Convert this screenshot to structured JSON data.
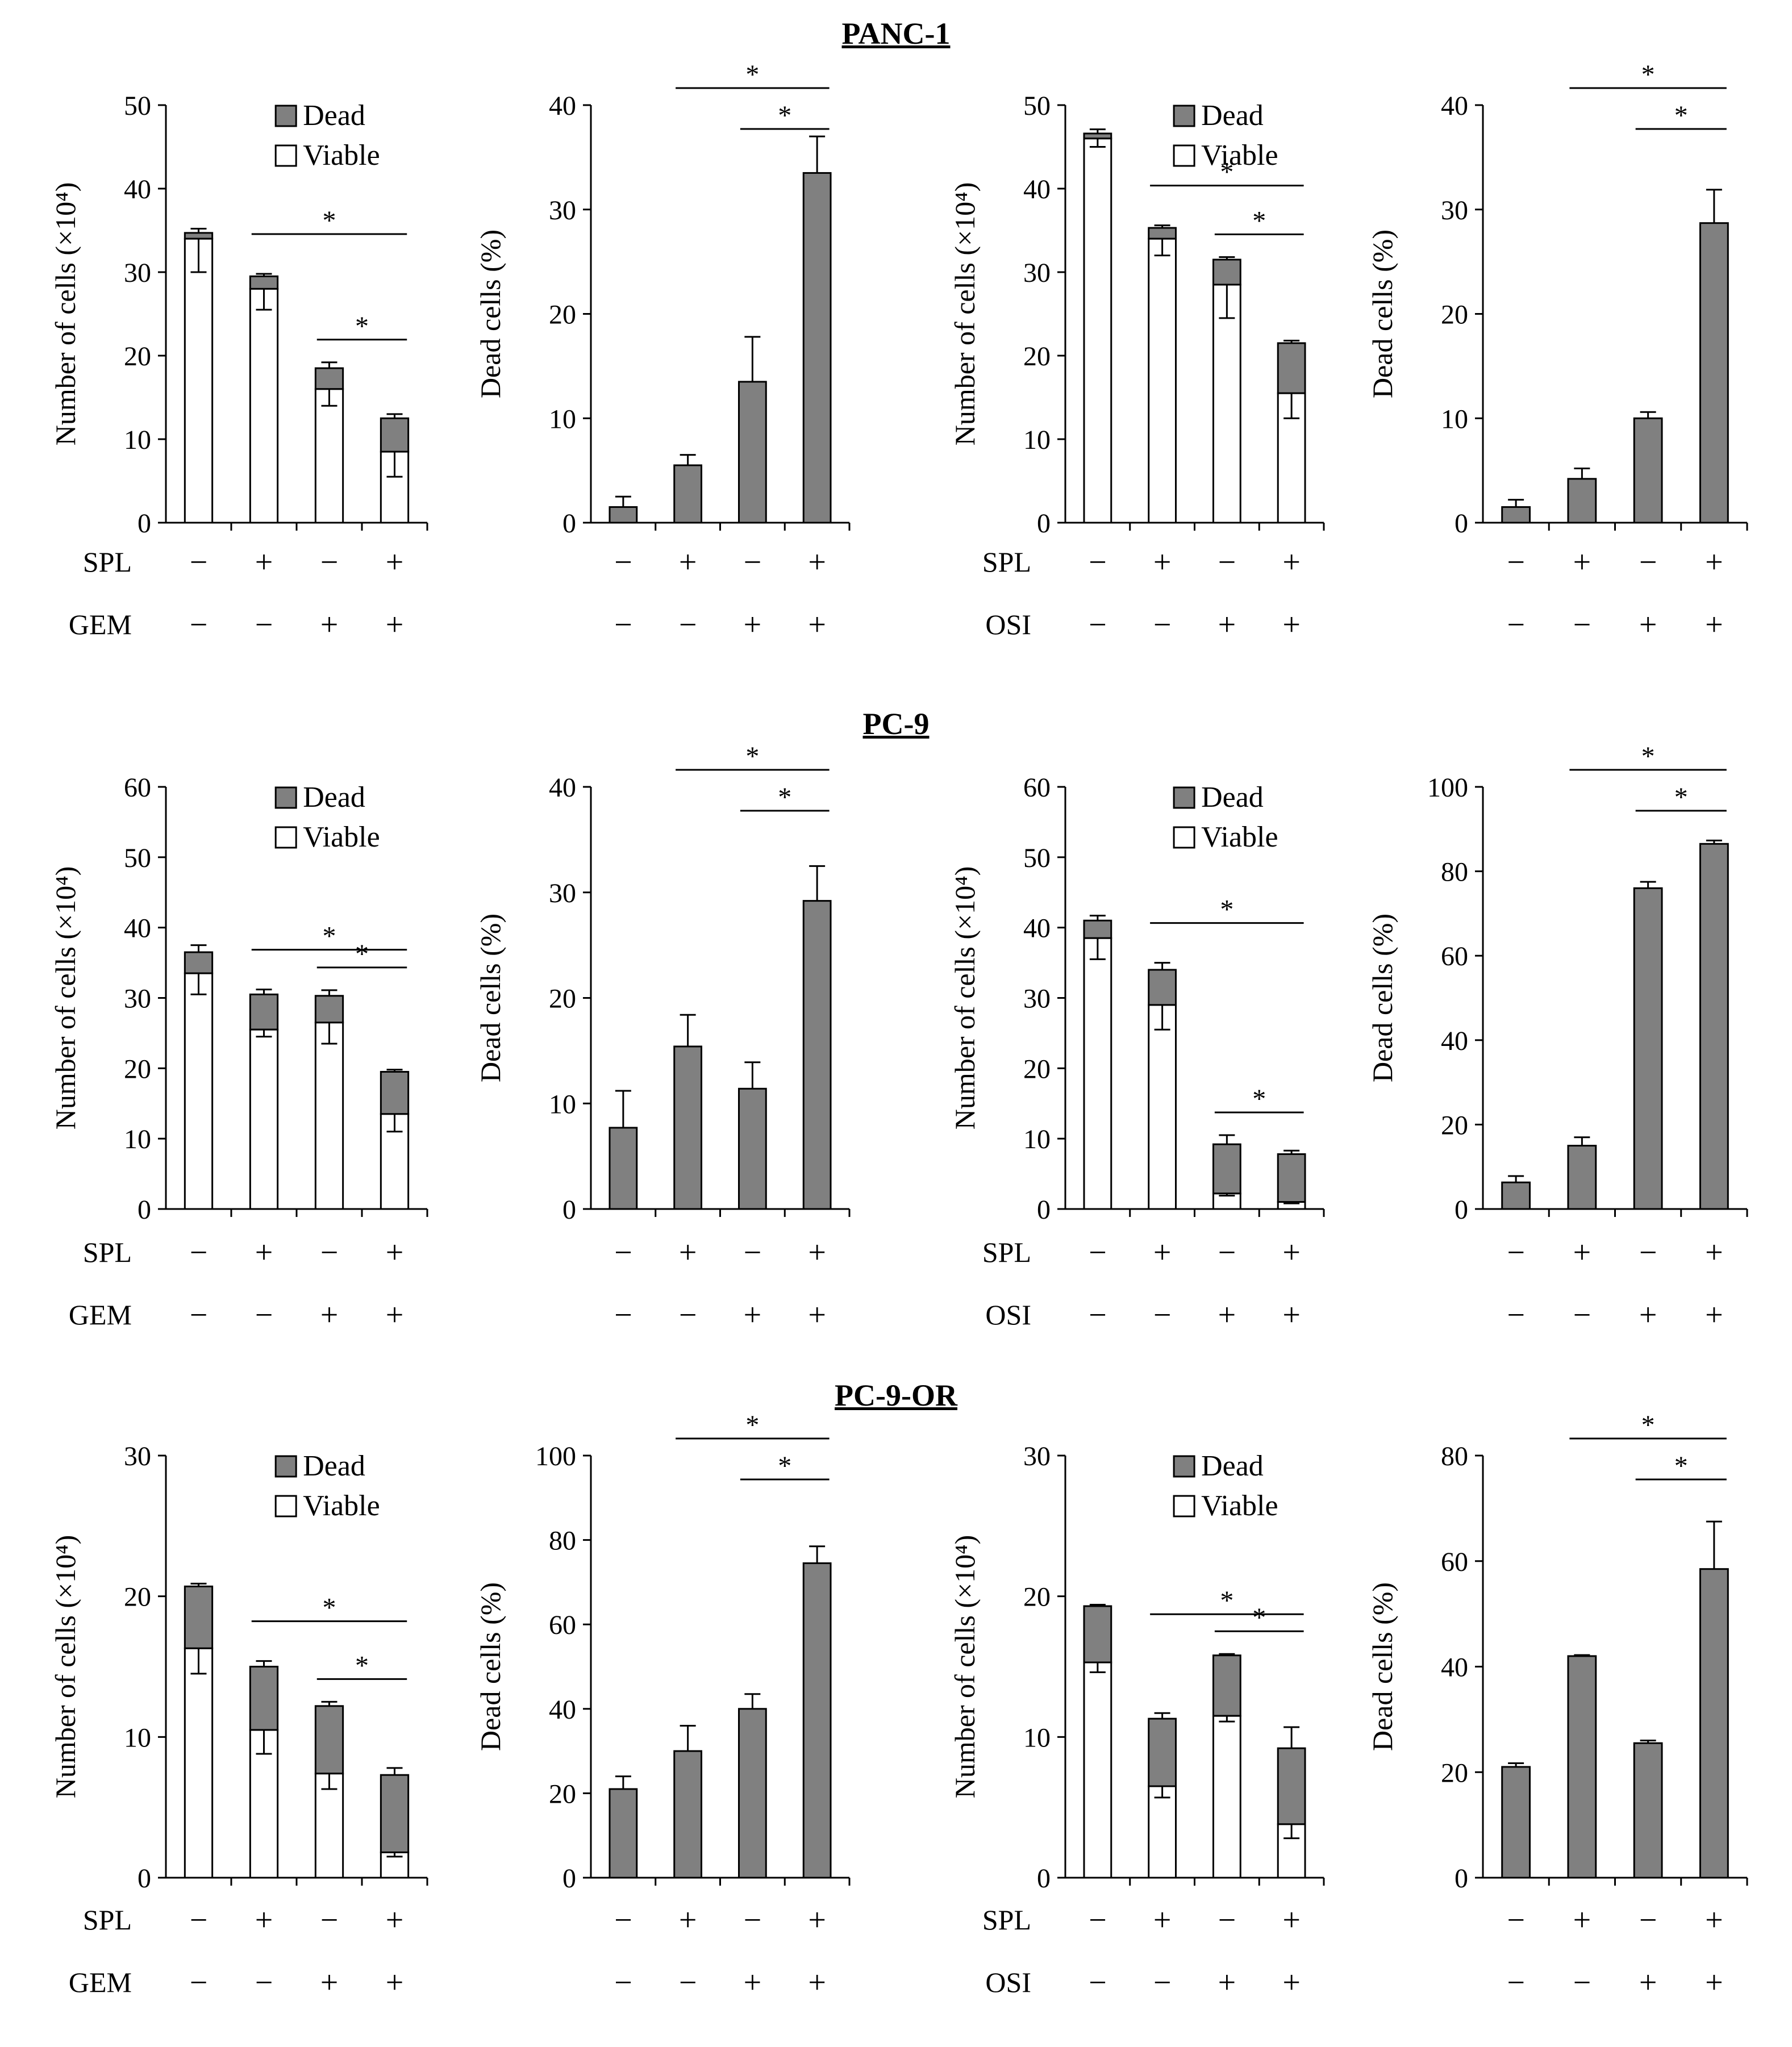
{
  "colors": {
    "dead": "#808080",
    "viable": "#ffffff",
    "axis": "#000000"
  },
  "rows": [
    {
      "title": "PANC-1"
    },
    {
      "title": "PC-9"
    },
    {
      "title": "PC-9-OR"
    }
  ],
  "chart_data": [
    {
      "id": "panc1-gem-count",
      "row": 0,
      "col": 0,
      "type": "bar",
      "stacked": true,
      "title": "",
      "ylabel": "Number of cells (×10⁴)",
      "ylim": [
        0,
        50
      ],
      "yticks": [
        0,
        10,
        20,
        30,
        40,
        50
      ],
      "categories": [
        "1",
        "2",
        "3",
        "4"
      ],
      "series": [
        {
          "name": "Viable",
          "values": [
            34,
            28,
            16,
            8.5
          ]
        },
        {
          "name": "Dead",
          "values": [
            0.7,
            1.5,
            2.5,
            4
          ]
        }
      ],
      "viable_err": [
        4,
        2.5,
        2,
        3
      ],
      "total_err": [
        0.5,
        0.3,
        0.7,
        0.5
      ],
      "legend": [
        "Dead",
        "Viable"
      ],
      "legend_position": "top",
      "treatments": [
        {
          "label": "SPL",
          "signs": [
            "−",
            "+",
            "−",
            "+"
          ]
        },
        {
          "label": "GEM",
          "signs": [
            "−",
            "−",
            "+",
            "+"
          ]
        }
      ],
      "brackets": [
        {
          "from": 1,
          "to": 3,
          "label": "*"
        },
        {
          "from": 2,
          "to": 3,
          "label": "*"
        }
      ]
    },
    {
      "id": "panc1-gem-dead",
      "row": 0,
      "col": 1,
      "type": "bar",
      "title": "",
      "ylabel": "Dead cells (%)",
      "ylim": [
        0,
        40
      ],
      "yticks": [
        0,
        10,
        20,
        30,
        40
      ],
      "categories": [
        "1",
        "2",
        "3",
        "4"
      ],
      "series": [
        {
          "name": "Dead",
          "values": [
            1.5,
            5.5,
            13.5,
            33.5
          ]
        }
      ],
      "err": [
        1,
        1,
        4.3,
        3.5
      ],
      "treatments": [
        {
          "label": "",
          "signs": [
            "−",
            "+",
            "−",
            "+"
          ]
        },
        {
          "label": "",
          "signs": [
            "−",
            "−",
            "+",
            "+"
          ]
        }
      ],
      "brackets": [
        {
          "from": 1,
          "to": 3,
          "label": "*"
        },
        {
          "from": 2,
          "to": 3,
          "label": "*"
        }
      ]
    },
    {
      "id": "panc1-osi-count",
      "row": 0,
      "col": 2,
      "type": "bar",
      "stacked": true,
      "title": "",
      "ylabel": "Number of cells (×10⁴)",
      "ylim": [
        0,
        50
      ],
      "yticks": [
        0,
        10,
        20,
        30,
        40,
        50
      ],
      "categories": [
        "1",
        "2",
        "3",
        "4"
      ],
      "series": [
        {
          "name": "Viable",
          "values": [
            46,
            34,
            28.5,
            15.5
          ]
        },
        {
          "name": "Dead",
          "values": [
            0.6,
            1.3,
            3,
            6
          ]
        }
      ],
      "viable_err": [
        1,
        2,
        4,
        3
      ],
      "total_err": [
        0.5,
        0.3,
        0.3,
        0.3
      ],
      "legend": [
        "Dead",
        "Viable"
      ],
      "legend_position": "top",
      "treatments": [
        {
          "label": "SPL",
          "signs": [
            "−",
            "+",
            "−",
            "+"
          ]
        },
        {
          "label": "OSI",
          "signs": [
            "−",
            "−",
            "+",
            "+"
          ]
        }
      ],
      "brackets": [
        {
          "from": 1,
          "to": 3,
          "label": "*"
        },
        {
          "from": 2,
          "to": 3,
          "label": "*"
        }
      ]
    },
    {
      "id": "panc1-osi-dead",
      "row": 0,
      "col": 3,
      "type": "bar",
      "title": "",
      "ylabel": "Dead cells (%)",
      "ylim": [
        0,
        40
      ],
      "yticks": [
        0,
        10,
        20,
        30,
        40
      ],
      "categories": [
        "1",
        "2",
        "3",
        "4"
      ],
      "series": [
        {
          "name": "Dead",
          "values": [
            1.5,
            4.2,
            10,
            28.7
          ]
        }
      ],
      "err": [
        0.7,
        1,
        0.6,
        3.2
      ],
      "treatments": [
        {
          "label": "",
          "signs": [
            "−",
            "+",
            "−",
            "+"
          ]
        },
        {
          "label": "",
          "signs": [
            "−",
            "−",
            "+",
            "+"
          ]
        }
      ],
      "brackets": [
        {
          "from": 1,
          "to": 3,
          "label": "*"
        },
        {
          "from": 2,
          "to": 3,
          "label": "*"
        }
      ]
    },
    {
      "id": "pc9-gem-count",
      "row": 1,
      "col": 0,
      "type": "bar",
      "stacked": true,
      "title": "",
      "ylabel": "Number of cells (×10⁴)",
      "ylim": [
        0,
        60
      ],
      "yticks": [
        0,
        10,
        20,
        30,
        40,
        50,
        60
      ],
      "categories": [
        "1",
        "2",
        "3",
        "4"
      ],
      "series": [
        {
          "name": "Viable",
          "values": [
            33.5,
            25.5,
            26.5,
            13.5
          ]
        },
        {
          "name": "Dead",
          "values": [
            3,
            5,
            3.8,
            6
          ]
        }
      ],
      "viable_err": [
        3,
        1,
        3,
        2.5
      ],
      "total_err": [
        1,
        0.7,
        0.8,
        0.3
      ],
      "legend": [
        "Dead",
        "Viable"
      ],
      "legend_position": "top",
      "treatments": [
        {
          "label": "SPL",
          "signs": [
            "−",
            "+",
            "−",
            "+"
          ]
        },
        {
          "label": "GEM",
          "signs": [
            "−",
            "−",
            "+",
            "+"
          ]
        }
      ],
      "brackets": [
        {
          "from": 1,
          "to": 3,
          "label": "*"
        },
        {
          "from": 2,
          "to": 3,
          "label": "*"
        }
      ]
    },
    {
      "id": "pc9-gem-dead",
      "row": 1,
      "col": 1,
      "type": "bar",
      "title": "",
      "ylabel": "Dead cells (%)",
      "ylim": [
        0,
        40
      ],
      "yticks": [
        0,
        10,
        20,
        30,
        40
      ],
      "categories": [
        "1",
        "2",
        "3",
        "4"
      ],
      "series": [
        {
          "name": "Dead",
          "values": [
            7.7,
            15.4,
            11.4,
            29.2
          ]
        }
      ],
      "err": [
        3.5,
        3,
        2.5,
        3.3
      ],
      "treatments": [
        {
          "label": "",
          "signs": [
            "−",
            "+",
            "−",
            "+"
          ]
        },
        {
          "label": "",
          "signs": [
            "−",
            "−",
            "+",
            "+"
          ]
        }
      ],
      "brackets": [
        {
          "from": 1,
          "to": 3,
          "label": "*"
        },
        {
          "from": 2,
          "to": 3,
          "label": "*"
        }
      ]
    },
    {
      "id": "pc9-osi-count",
      "row": 1,
      "col": 2,
      "type": "bar",
      "stacked": true,
      "title": "",
      "ylabel": "Number of cells (×10⁴)",
      "ylim": [
        0,
        60
      ],
      "yticks": [
        0,
        10,
        20,
        30,
        40,
        50,
        60
      ],
      "categories": [
        "1",
        "2",
        "3",
        "4"
      ],
      "series": [
        {
          "name": "Viable",
          "values": [
            38.5,
            29,
            2.2,
            1
          ]
        },
        {
          "name": "Dead",
          "values": [
            2.5,
            5,
            7,
            6.8
          ]
        }
      ],
      "viable_err": [
        3,
        3.5,
        0.3,
        0.2
      ],
      "total_err": [
        0.7,
        1,
        1.3,
        0.5
      ],
      "legend": [
        "Dead",
        "Viable"
      ],
      "legend_position": "top",
      "treatments": [
        {
          "label": "SPL",
          "signs": [
            "−",
            "+",
            "−",
            "+"
          ]
        },
        {
          "label": "OSI",
          "signs": [
            "−",
            "−",
            "+",
            "+"
          ]
        }
      ],
      "brackets": [
        {
          "from": 1,
          "to": 3,
          "label": "*"
        },
        {
          "from": 2,
          "to": 3,
          "label": "*"
        }
      ]
    },
    {
      "id": "pc9-osi-dead",
      "row": 1,
      "col": 3,
      "type": "bar",
      "title": "",
      "ylabel": "Dead cells (%)",
      "ylim": [
        0,
        100
      ],
      "yticks": [
        0,
        20,
        40,
        60,
        80,
        100
      ],
      "categories": [
        "1",
        "2",
        "3",
        "4"
      ],
      "series": [
        {
          "name": "Dead",
          "values": [
            6.3,
            15,
            76,
            86.5
          ]
        }
      ],
      "err": [
        1.5,
        2,
        1.5,
        0.8
      ],
      "treatments": [
        {
          "label": "",
          "signs": [
            "−",
            "+",
            "−",
            "+"
          ]
        },
        {
          "label": "",
          "signs": [
            "−",
            "−",
            "+",
            "+"
          ]
        }
      ],
      "brackets": [
        {
          "from": 1,
          "to": 3,
          "label": "*"
        },
        {
          "from": 2,
          "to": 3,
          "label": "*"
        }
      ]
    },
    {
      "id": "pc9or-gem-count",
      "row": 2,
      "col": 0,
      "type": "bar",
      "stacked": true,
      "title": "",
      "ylabel": "Number of cells (×10⁴)",
      "ylim": [
        0,
        30
      ],
      "yticks": [
        0,
        10,
        20,
        30
      ],
      "categories": [
        "1",
        "2",
        "3",
        "4"
      ],
      "series": [
        {
          "name": "Viable",
          "values": [
            16.3,
            10.5,
            7.4,
            1.8
          ]
        },
        {
          "name": "Dead",
          "values": [
            4.4,
            4.5,
            4.8,
            5.5
          ]
        }
      ],
      "viable_err": [
        1.8,
        1.7,
        1.1,
        0.3
      ],
      "total_err": [
        0.2,
        0.4,
        0.3,
        0.5
      ],
      "legend": [
        "Dead",
        "Viable"
      ],
      "legend_position": "top",
      "treatments": [
        {
          "label": "SPL",
          "signs": [
            "−",
            "+",
            "−",
            "+"
          ]
        },
        {
          "label": "GEM",
          "signs": [
            "−",
            "−",
            "+",
            "+"
          ]
        }
      ],
      "brackets": [
        {
          "from": 1,
          "to": 3,
          "label": "*"
        },
        {
          "from": 2,
          "to": 3,
          "label": "*"
        }
      ]
    },
    {
      "id": "pc9or-gem-dead",
      "row": 2,
      "col": 1,
      "type": "bar",
      "title": "",
      "ylabel": "Dead cells (%)",
      "ylim": [
        0,
        100
      ],
      "yticks": [
        0,
        20,
        40,
        60,
        80,
        100
      ],
      "categories": [
        "1",
        "2",
        "3",
        "4"
      ],
      "series": [
        {
          "name": "Dead",
          "values": [
            21,
            30,
            40,
            74.5
          ]
        }
      ],
      "err": [
        3,
        6,
        3.5,
        4
      ],
      "treatments": [
        {
          "label": "",
          "signs": [
            "−",
            "+",
            "−",
            "+"
          ]
        },
        {
          "label": "",
          "signs": [
            "−",
            "−",
            "+",
            "+"
          ]
        }
      ],
      "brackets": [
        {
          "from": 1,
          "to": 3,
          "label": "*"
        },
        {
          "from": 2,
          "to": 3,
          "label": "*"
        }
      ]
    },
    {
      "id": "pc9or-osi-count",
      "row": 2,
      "col": 2,
      "type": "bar",
      "stacked": true,
      "title": "",
      "ylabel": "Number of cells (×10⁴)",
      "ylim": [
        0,
        30
      ],
      "yticks": [
        0,
        10,
        20,
        30
      ],
      "categories": [
        "1",
        "2",
        "3",
        "4"
      ],
      "series": [
        {
          "name": "Viable",
          "values": [
            15.3,
            6.5,
            11.5,
            3.8
          ]
        },
        {
          "name": "Dead",
          "values": [
            4,
            4.8,
            4.3,
            5.4
          ]
        }
      ],
      "viable_err": [
        0.7,
        0.8,
        0.4,
        1
      ],
      "total_err": [
        0.1,
        0.4,
        0.1,
        1.5
      ],
      "legend": [
        "Dead",
        "Viable"
      ],
      "legend_position": "top",
      "treatments": [
        {
          "label": "SPL",
          "signs": [
            "−",
            "+",
            "−",
            "+"
          ]
        },
        {
          "label": "OSI",
          "signs": [
            "−",
            "−",
            "+",
            "+"
          ]
        }
      ],
      "brackets": [
        {
          "from": 1,
          "to": 3,
          "label": "*"
        },
        {
          "from": 2,
          "to": 3,
          "label": "*"
        }
      ]
    },
    {
      "id": "pc9or-osi-dead",
      "row": 2,
      "col": 3,
      "type": "bar",
      "title": "",
      "ylabel": "Dead cells (%)",
      "ylim": [
        0,
        80
      ],
      "yticks": [
        0,
        20,
        40,
        60,
        80
      ],
      "categories": [
        "1",
        "2",
        "3",
        "4"
      ],
      "series": [
        {
          "name": "Dead",
          "values": [
            21,
            42,
            25.5,
            58.5
          ]
        }
      ],
      "err": [
        0.7,
        0.2,
        0.5,
        9
      ],
      "treatments": [
        {
          "label": "",
          "signs": [
            "−",
            "+",
            "−",
            "+"
          ]
        },
        {
          "label": "",
          "signs": [
            "−",
            "−",
            "+",
            "+"
          ]
        }
      ],
      "brackets": [
        {
          "from": 1,
          "to": 3,
          "label": "*"
        },
        {
          "from": 2,
          "to": 3,
          "label": "*"
        }
      ]
    }
  ]
}
